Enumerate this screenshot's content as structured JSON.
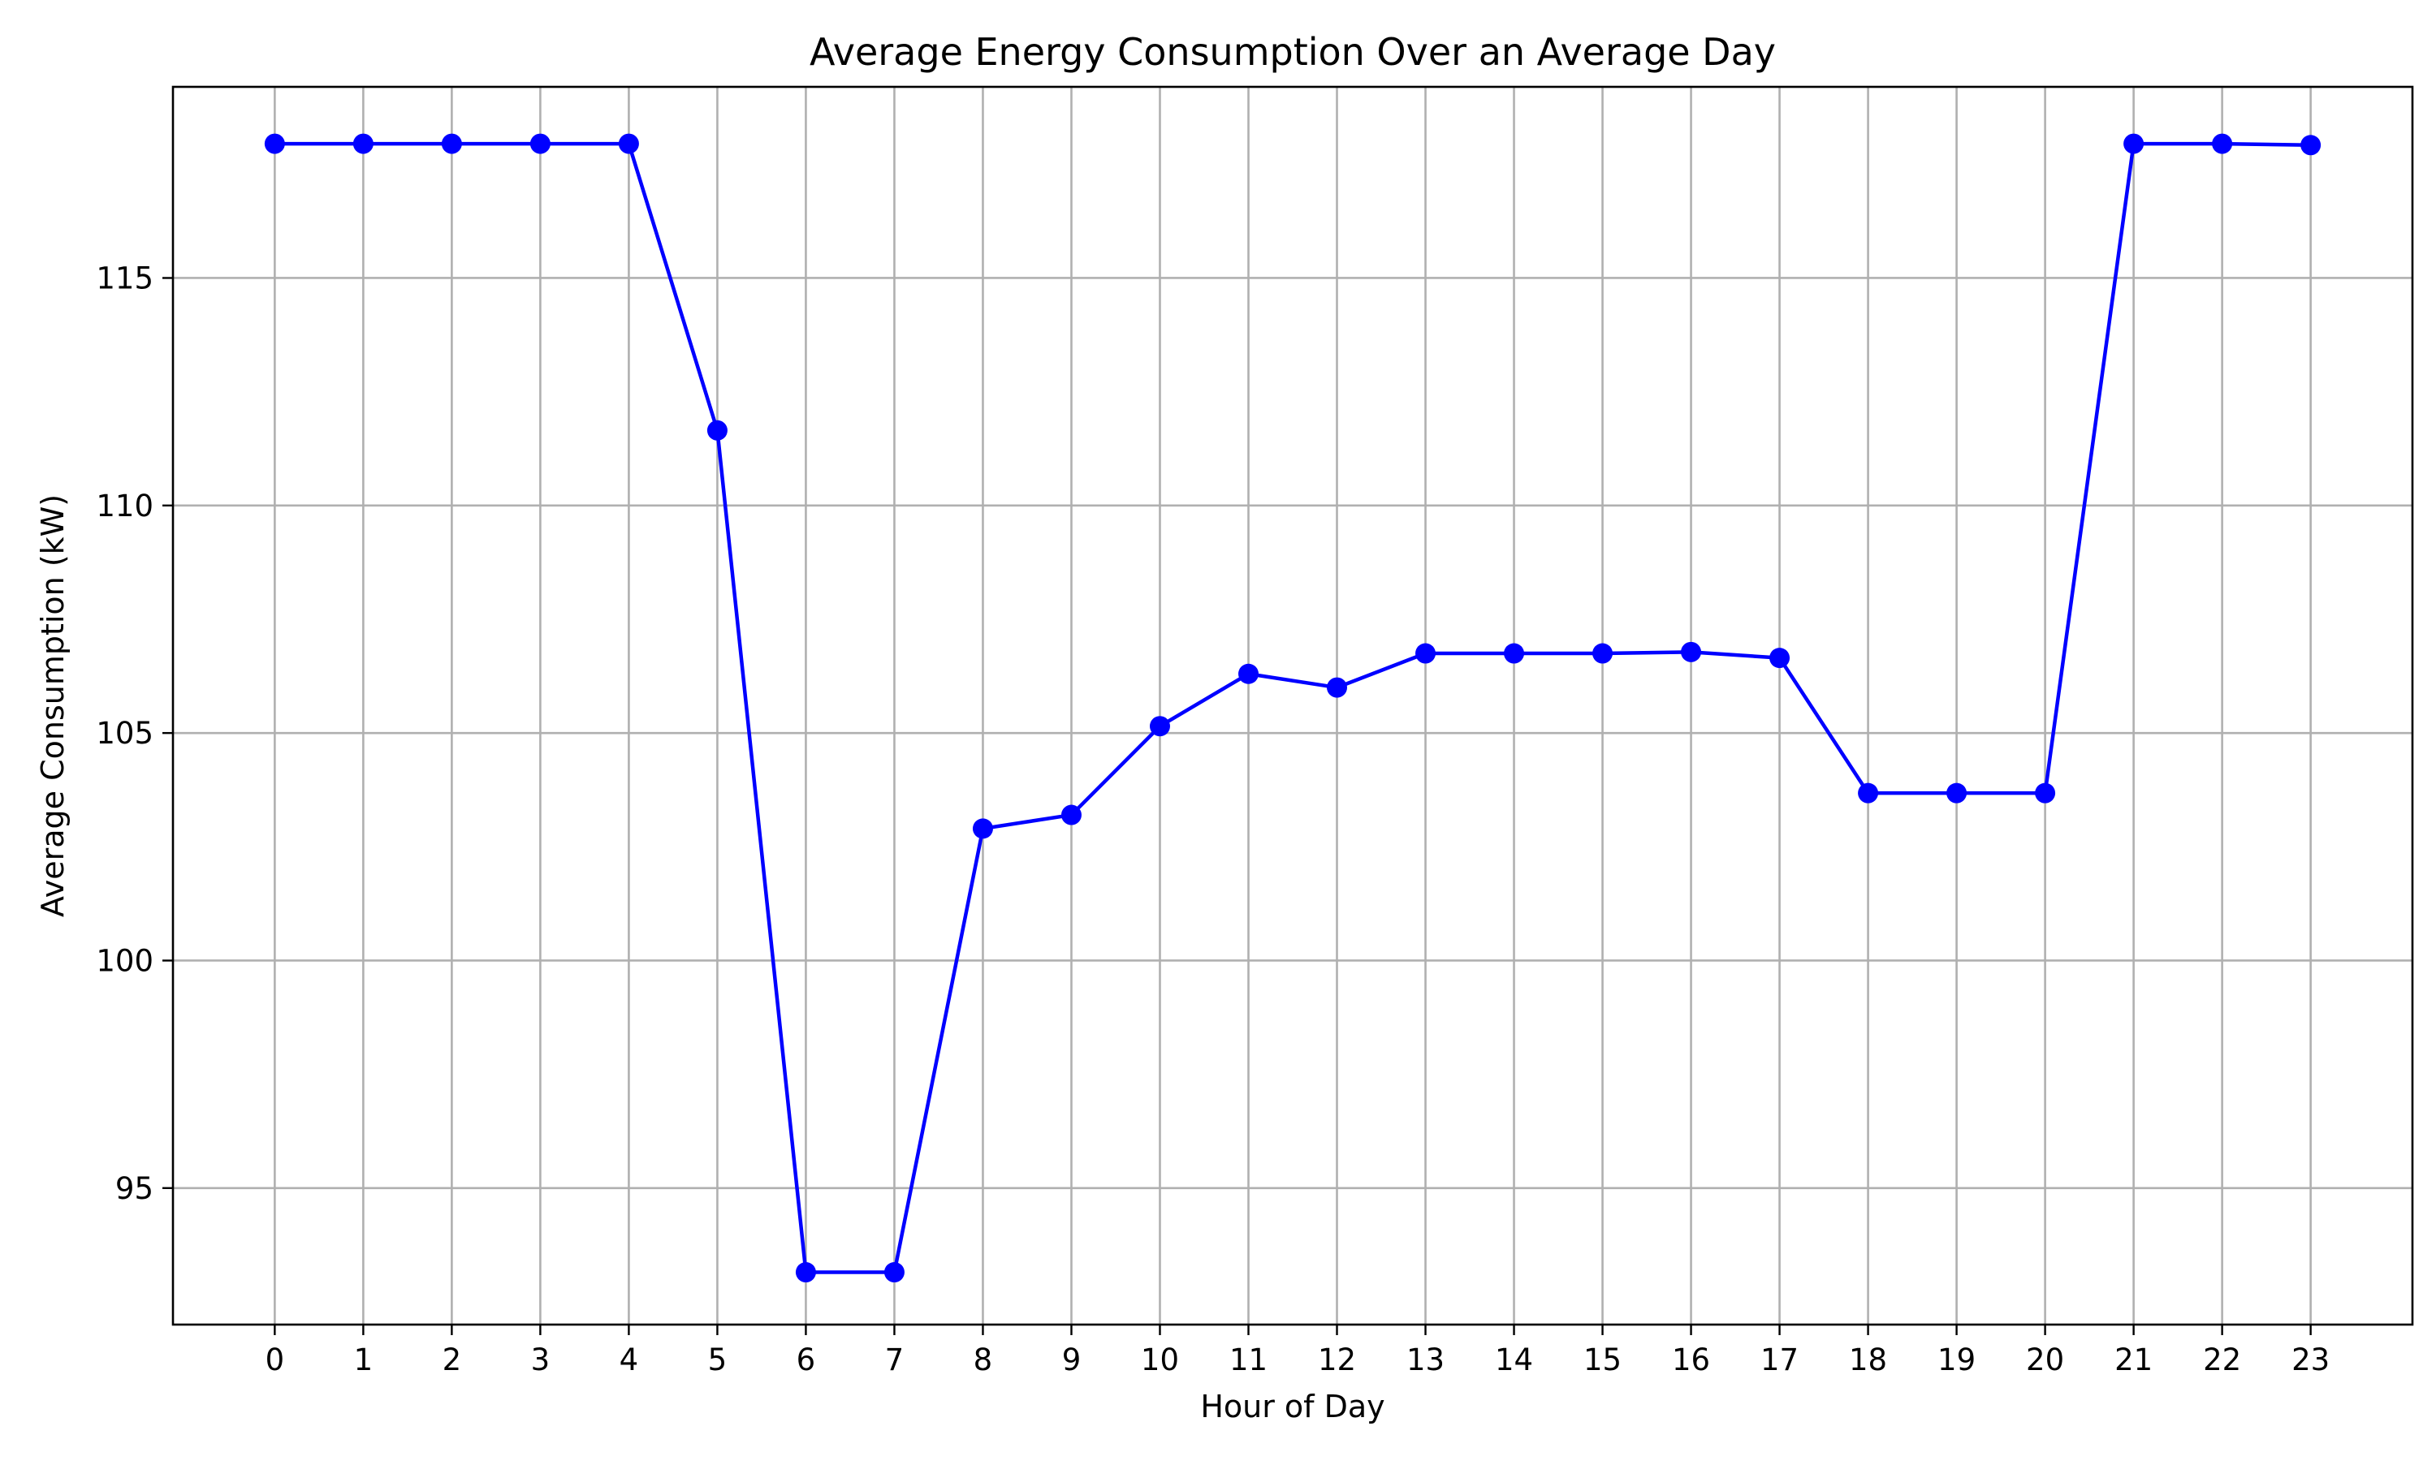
{
  "chart_data": {
    "type": "line",
    "title": "Average Energy Consumption Over an Average Day",
    "xlabel": "Hour of Day",
    "ylabel": "Average Consumption (kW)",
    "x": [
      0,
      1,
      2,
      3,
      4,
      5,
      6,
      7,
      8,
      9,
      10,
      11,
      12,
      13,
      14,
      15,
      16,
      17,
      18,
      19,
      20,
      21,
      22,
      23
    ],
    "x_tick_labels": [
      "0",
      "1",
      "2",
      "3",
      "4",
      "5",
      "6",
      "7",
      "8",
      "9",
      "10",
      "11",
      "12",
      "13",
      "14",
      "15",
      "16",
      "17",
      "18",
      "19",
      "20",
      "21",
      "22",
      "23"
    ],
    "y_ticks": [
      95,
      100,
      105,
      110,
      115
    ],
    "y_tick_labels": [
      "95",
      "100",
      "105",
      "110",
      "115"
    ],
    "xlim": [
      -1.15,
      24.15
    ],
    "ylim": [
      92.0,
      119.2
    ],
    "grid": true,
    "legend": "none",
    "series": [
      {
        "values": [
          117.95,
          117.95,
          117.95,
          117.95,
          117.95,
          111.65,
          93.15,
          93.15,
          102.9,
          103.2,
          105.15,
          106.3,
          106.0,
          106.75,
          106.75,
          106.75,
          106.78,
          106.65,
          103.68,
          103.68,
          103.68,
          117.95,
          117.95,
          117.92
        ],
        "color": "#0000ff",
        "marker": "circle"
      }
    ]
  }
}
